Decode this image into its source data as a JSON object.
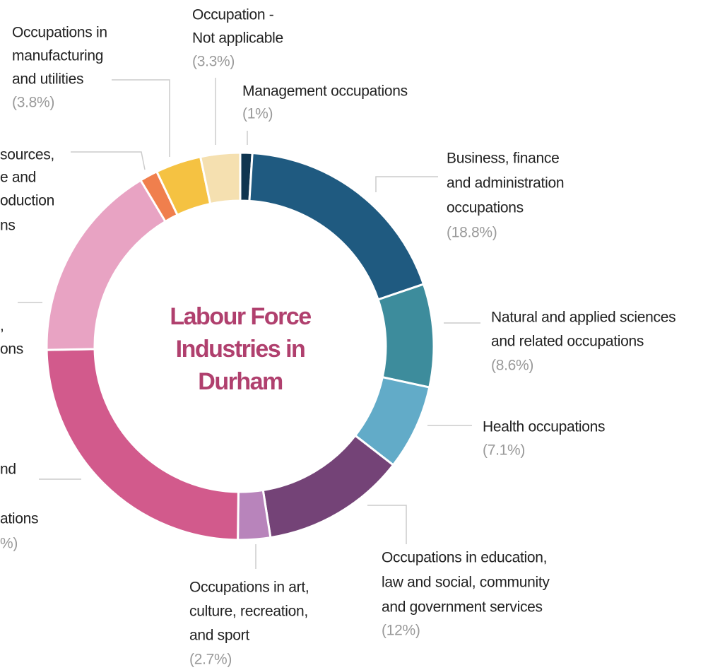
{
  "chart_data": {
    "type": "donut",
    "title": "Labour Force Industries in Durham",
    "categories": [
      [
        "Management occupations"
      ],
      [
        "Business, finance",
        "and administration",
        "occupations"
      ],
      [
        "Natural and applied sciences",
        "and related occupations"
      ],
      [
        "Health occupations"
      ],
      [
        "Occupations in education,",
        "law and social, community",
        "and government services"
      ],
      [
        "Occupations in art,",
        "culture, recreation,",
        "and sport"
      ],
      [
        "nd",
        "",
        "ations"
      ],
      [
        ",",
        "ons"
      ],
      [
        "sources,",
        "e and",
        "oduction",
        "ns"
      ],
      [
        "Occupations in",
        "manufacturing",
        "and utilities"
      ],
      [
        "Occupation -",
        "Not applicable"
      ]
    ],
    "values": [
      1,
      18.8,
      8.6,
      7.1,
      12,
      2.7,
      24.5,
      16.7,
      1.5,
      3.8,
      3.3
    ],
    "value_labels": [
      "(1%)",
      "(18.8%)",
      "(8.6%)",
      "(7.1%)",
      "(12%)",
      "(2.7%)",
      "%)",
      null,
      null,
      "(3.8%)",
      "(3.3%)"
    ],
    "colors": [
      "#0f3550",
      "#1f5a80",
      "#3d8c9c",
      "#62abc8",
      "#744377",
      "#b884bb",
      "#d25a8c",
      "#e8a3c3",
      "#f07f4d",
      "#f5c242",
      "#f5e0b0"
    ]
  }
}
